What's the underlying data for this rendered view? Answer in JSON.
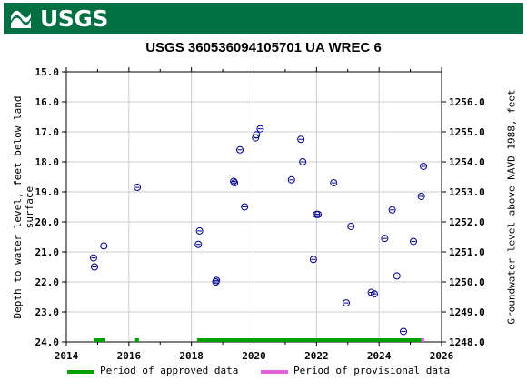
{
  "header": {
    "logo_text": "USGS"
  },
  "chart_data": {
    "type": "scatter",
    "title": "USGS 360536094105701 UA WREC 6",
    "ylabel_left_line1": "Depth to water level, feet below land",
    "ylabel_left_line2": "surface",
    "ylabel_right": "Groundwater level above NAVD 1988, feet",
    "xlim": [
      2014,
      2026
    ],
    "ylim_left": [
      24.0,
      15.0
    ],
    "ylim_right": [
      1248.0,
      1257.0
    ],
    "x_ticks": [
      2014,
      2016,
      2018,
      2020,
      2022,
      2024,
      2026
    ],
    "x_tick_labels": [
      "2014",
      "2016",
      "2018",
      "2020",
      "2022",
      "2024",
      "2026"
    ],
    "y_left_ticks": [
      15.0,
      16.0,
      17.0,
      18.0,
      19.0,
      20.0,
      21.0,
      22.0,
      23.0,
      24.0
    ],
    "y_left_tick_labels": [
      "15.0",
      "16.0",
      "17.0",
      "18.0",
      "19.0",
      "20.0",
      "21.0",
      "22.0",
      "23.0",
      "24.0"
    ],
    "y_right_ticks": [
      1256.0,
      1255.0,
      1254.0,
      1253.0,
      1252.0,
      1251.0,
      1250.0,
      1249.0,
      1248.0
    ],
    "y_right_tick_labels": [
      "1256.0",
      "1255.0",
      "1254.0",
      "1253.0",
      "1252.0",
      "1251.0",
      "1250.0",
      "1249.0",
      "1248.0"
    ],
    "grid": true,
    "series": [
      {
        "x": [
          2014.87,
          2014.9,
          2015.2,
          2016.27,
          2018.22,
          2018.26,
          2018.78,
          2018.8,
          2019.35,
          2019.38,
          2019.55,
          2019.7,
          2020.05,
          2020.08,
          2020.2,
          2021.2,
          2021.5,
          2021.56,
          2021.9,
          2022.0,
          2022.05,
          2022.55,
          2022.95,
          2023.1,
          2023.75,
          2023.85,
          2024.18,
          2024.42,
          2024.57,
          2024.78,
          2025.1,
          2025.35,
          2025.42
        ],
        "y": [
          21.2,
          21.5,
          20.8,
          18.85,
          20.75,
          20.3,
          22.0,
          21.95,
          18.65,
          18.7,
          17.6,
          19.5,
          17.2,
          17.1,
          16.9,
          18.6,
          17.25,
          18.0,
          21.25,
          19.75,
          19.75,
          18.7,
          22.7,
          20.15,
          22.35,
          22.4,
          20.55,
          19.6,
          21.8,
          23.65,
          20.65,
          19.15,
          18.15
        ]
      }
    ],
    "periods": [
      {
        "kind": "approved",
        "start": 2014.87,
        "end": 2015.25
      },
      {
        "kind": "approved",
        "start": 2016.2,
        "end": 2016.32
      },
      {
        "kind": "approved",
        "start": 2018.18,
        "end": 2025.35
      },
      {
        "kind": "provisional",
        "start": 2025.35,
        "end": 2025.45
      }
    ],
    "colors": {
      "points": "#00008b",
      "approved": "#00a000",
      "provisional": "#e060e0",
      "grid": "#cccccc",
      "banner": "#006f41"
    },
    "legend": {
      "approved_label": "Period of approved data",
      "provisional_label": "Period of provisional data"
    }
  }
}
